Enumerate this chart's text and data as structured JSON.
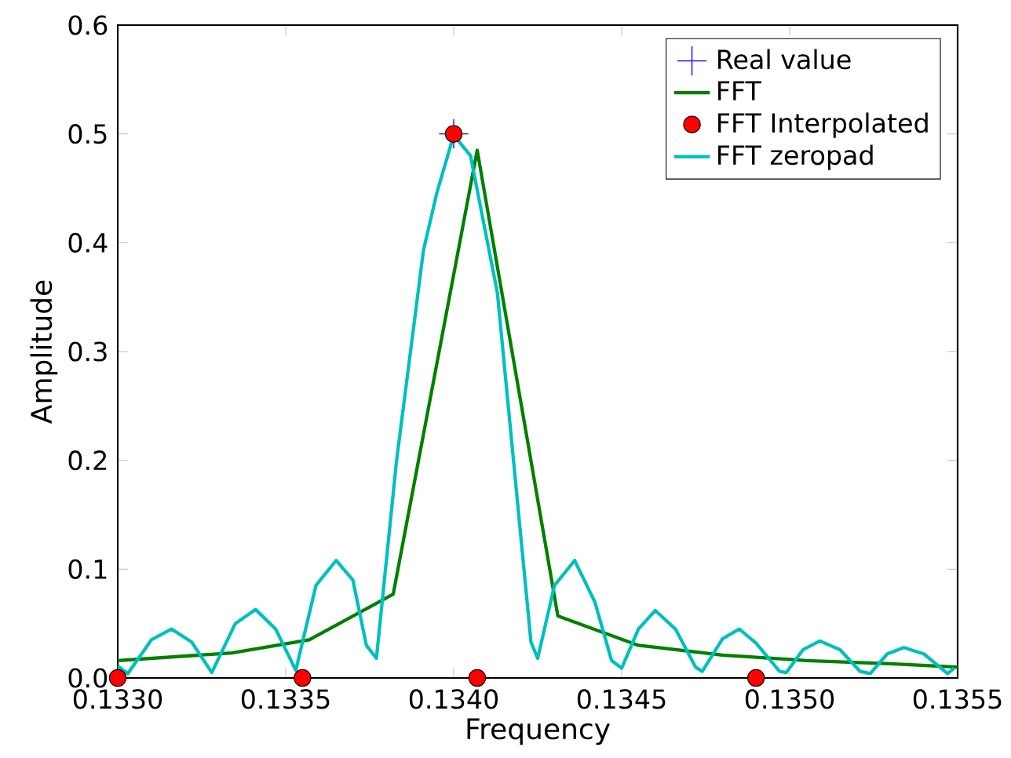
{
  "chart_data": {
    "type": "line",
    "xlabel": "Frequency",
    "ylabel": "Amplitude",
    "xlim": [
      0.133,
      0.1355
    ],
    "ylim": [
      0,
      0.6
    ],
    "xticks": [
      {
        "value": 0.133,
        "label": "0.1330"
      },
      {
        "value": 0.1335,
        "label": "0.1335"
      },
      {
        "value": 0.134,
        "label": "0.1340"
      },
      {
        "value": 0.1345,
        "label": "0.1345"
      },
      {
        "value": 0.135,
        "label": "0.1350"
      },
      {
        "value": 0.1355,
        "label": "0.1355"
      }
    ],
    "yticks": [
      {
        "value": 0,
        "label": "0.0"
      },
      {
        "value": 0.1,
        "label": "0.1"
      },
      {
        "value": 0.2,
        "label": "0.2"
      },
      {
        "value": 0.3,
        "label": "0.3"
      },
      {
        "value": 0.4,
        "label": "0.4"
      },
      {
        "value": 0.5,
        "label": "0.5"
      },
      {
        "value": 0.6,
        "label": "0.6"
      }
    ],
    "legend": "top right",
    "grid": false,
    "series": [
      {
        "name": "Real value",
        "type": "scatter",
        "marker": "cross",
        "color": "#0000ff",
        "x": [
          0.134
        ],
        "values": [
          0.5
        ]
      },
      {
        "name": "FFT",
        "marker": "none",
        "color": "#008000",
        "x": [
          0.133,
          0.13334,
          0.13357,
          0.13382,
          0.13407,
          0.13431,
          0.13455,
          0.1348,
          0.13505,
          0.1353,
          0.1355
        ],
        "values": [
          0.016,
          0.023,
          0.035,
          0.077,
          0.485,
          0.057,
          0.03,
          0.021,
          0.016,
          0.013,
          0.01
        ]
      },
      {
        "name": "FFT Interpolated",
        "type": "scatter",
        "marker": "circle",
        "color": "#ff0000",
        "x": [
          0.133,
          0.13355,
          0.134,
          0.13407,
          0.1349
        ],
        "values": [
          0,
          0,
          0.5,
          0,
          0
        ]
      },
      {
        "name": "FFT zeropad",
        "marker": "none",
        "color": "#00bfbf",
        "x": [
          0.133,
          0.13303,
          0.1331,
          0.13316,
          0.13322,
          0.13328,
          0.13335,
          0.13341,
          0.13347,
          0.13353,
          0.13359,
          0.13365,
          0.1337,
          0.13374,
          0.13377,
          0.13383,
          0.13391,
          0.13395,
          0.134,
          0.13405,
          0.13413,
          0.13423,
          0.13425,
          0.1343,
          0.13436,
          0.13442,
          0.13447,
          0.1345,
          0.13455,
          0.1346,
          0.13466,
          0.13472,
          0.13474,
          0.1348,
          0.13485,
          0.1349,
          0.13497,
          0.13499,
          0.13504,
          0.13509,
          0.13515,
          0.13521,
          0.13524,
          0.13529,
          0.13534,
          0.1354,
          0.13547,
          0.13549
        ],
        "values": [
          0.011,
          0.004,
          0.035,
          0.045,
          0.033,
          0.005,
          0.05,
          0.063,
          0.045,
          0.007,
          0.085,
          0.108,
          0.09,
          0.03,
          0.018,
          0.2,
          0.393,
          0.446,
          0.499,
          0.48,
          0.354,
          0.033,
          0.018,
          0.085,
          0.108,
          0.07,
          0.016,
          0.009,
          0.045,
          0.062,
          0.045,
          0.01,
          0.006,
          0.036,
          0.045,
          0.032,
          0.006,
          0.005,
          0.026,
          0.034,
          0.026,
          0.006,
          0.004,
          0.022,
          0.028,
          0.022,
          0.004,
          0.009
        ]
      }
    ]
  }
}
